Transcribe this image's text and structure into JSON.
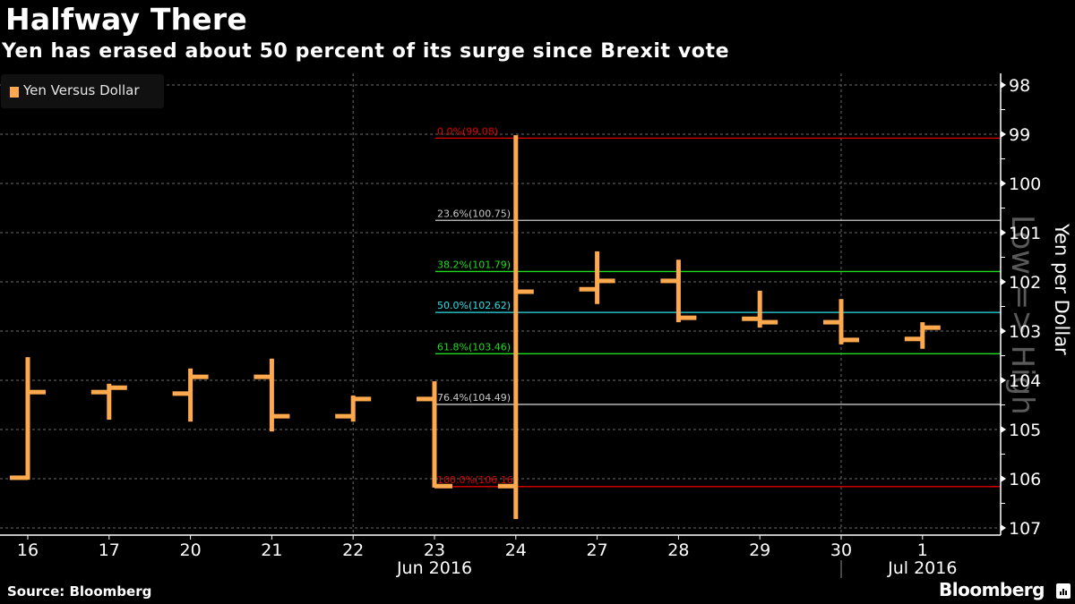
{
  "header": {
    "title": "Halfway There",
    "subtitle": "Yen has erased about 50 percent of its surge since Brexit vote"
  },
  "legend": {
    "label": "Yen Versus Dollar",
    "color": "#ffa94f"
  },
  "footer": {
    "source": "Source: Bloomberg",
    "brand": "Bloomberg",
    "brand_icon": "bloomberg-chart-icon"
  },
  "chart_data": {
    "type": "ohlc",
    "title": "Halfway There",
    "subtitle": "Yen has erased about 50 percent of its surge since Brexit vote",
    "ylabel": "Yen per Dollar",
    "y_watermark": "Low => High",
    "y_inverted": true,
    "ylim": [
      98,
      107
    ],
    "yticks": [
      98,
      99,
      100,
      101,
      102,
      103,
      104,
      105,
      106,
      107
    ],
    "grid": true,
    "legend_position": "top-left",
    "series": [
      {
        "name": "Yen Versus Dollar",
        "color": "#ffa94f",
        "points": [
          {
            "date": "16",
            "open": 105.98,
            "high": 103.53,
            "low": 106.02,
            "close": 104.24
          },
          {
            "date": "17",
            "open": 104.24,
            "high": 104.07,
            "low": 104.8,
            "close": 104.15
          },
          {
            "date": "20",
            "open": 104.27,
            "high": 103.76,
            "low": 104.84,
            "close": 103.93
          },
          {
            "date": "21",
            "open": 103.93,
            "high": 103.56,
            "low": 105.04,
            "close": 104.73
          },
          {
            "date": "22",
            "open": 104.73,
            "high": 104.31,
            "low": 104.84,
            "close": 104.38
          },
          {
            "date": "23",
            "open": 104.38,
            "high": 104.02,
            "low": 106.18,
            "close": 106.15
          },
          {
            "date": "24",
            "open": 106.15,
            "high": 99.02,
            "low": 106.82,
            "close": 102.2
          },
          {
            "date": "27",
            "open": 102.15,
            "high": 101.38,
            "low": 102.45,
            "close": 101.98
          },
          {
            "date": "28",
            "open": 101.98,
            "high": 101.55,
            "low": 102.82,
            "close": 102.73
          },
          {
            "date": "29",
            "open": 102.75,
            "high": 102.18,
            "low": 102.93,
            "close": 102.82
          },
          {
            "date": "30",
            "open": 102.82,
            "high": 102.35,
            "low": 103.27,
            "close": 103.18
          },
          {
            "date": "1",
            "open": 103.16,
            "high": 102.82,
            "low": 103.36,
            "close": 102.93
          }
        ]
      }
    ],
    "x_tick_labels": [
      "16",
      "17",
      "20",
      "21",
      "22",
      "23",
      "24",
      "27",
      "28",
      "29",
      "30",
      "1"
    ],
    "x_group_labels": [
      {
        "label": "Jun 2016",
        "under": "23"
      },
      {
        "label": "Jul 2016",
        "under": "1"
      }
    ],
    "vertical_gridlines_at": [
      "22",
      "30"
    ],
    "fibonacci_levels": [
      {
        "label": "0.0%(99.08)",
        "value": 99.08,
        "color": "#e00000"
      },
      {
        "label": "23.6%(100.75)",
        "value": 100.75,
        "color": "#c8c8c8"
      },
      {
        "label": "38.2%(101.79)",
        "value": 101.79,
        "color": "#1fdc1f"
      },
      {
        "label": "50.0%(102.62)",
        "value": 102.62,
        "color": "#2ae0e8"
      },
      {
        "label": "61.8%(103.46)",
        "value": 103.46,
        "color": "#1fdc1f"
      },
      {
        "label": "76.4%(104.49)",
        "value": 104.49,
        "color": "#c8c8c8"
      },
      {
        "label": "100.0%(106.16)",
        "value": 106.16,
        "color": "#e00000"
      }
    ]
  }
}
